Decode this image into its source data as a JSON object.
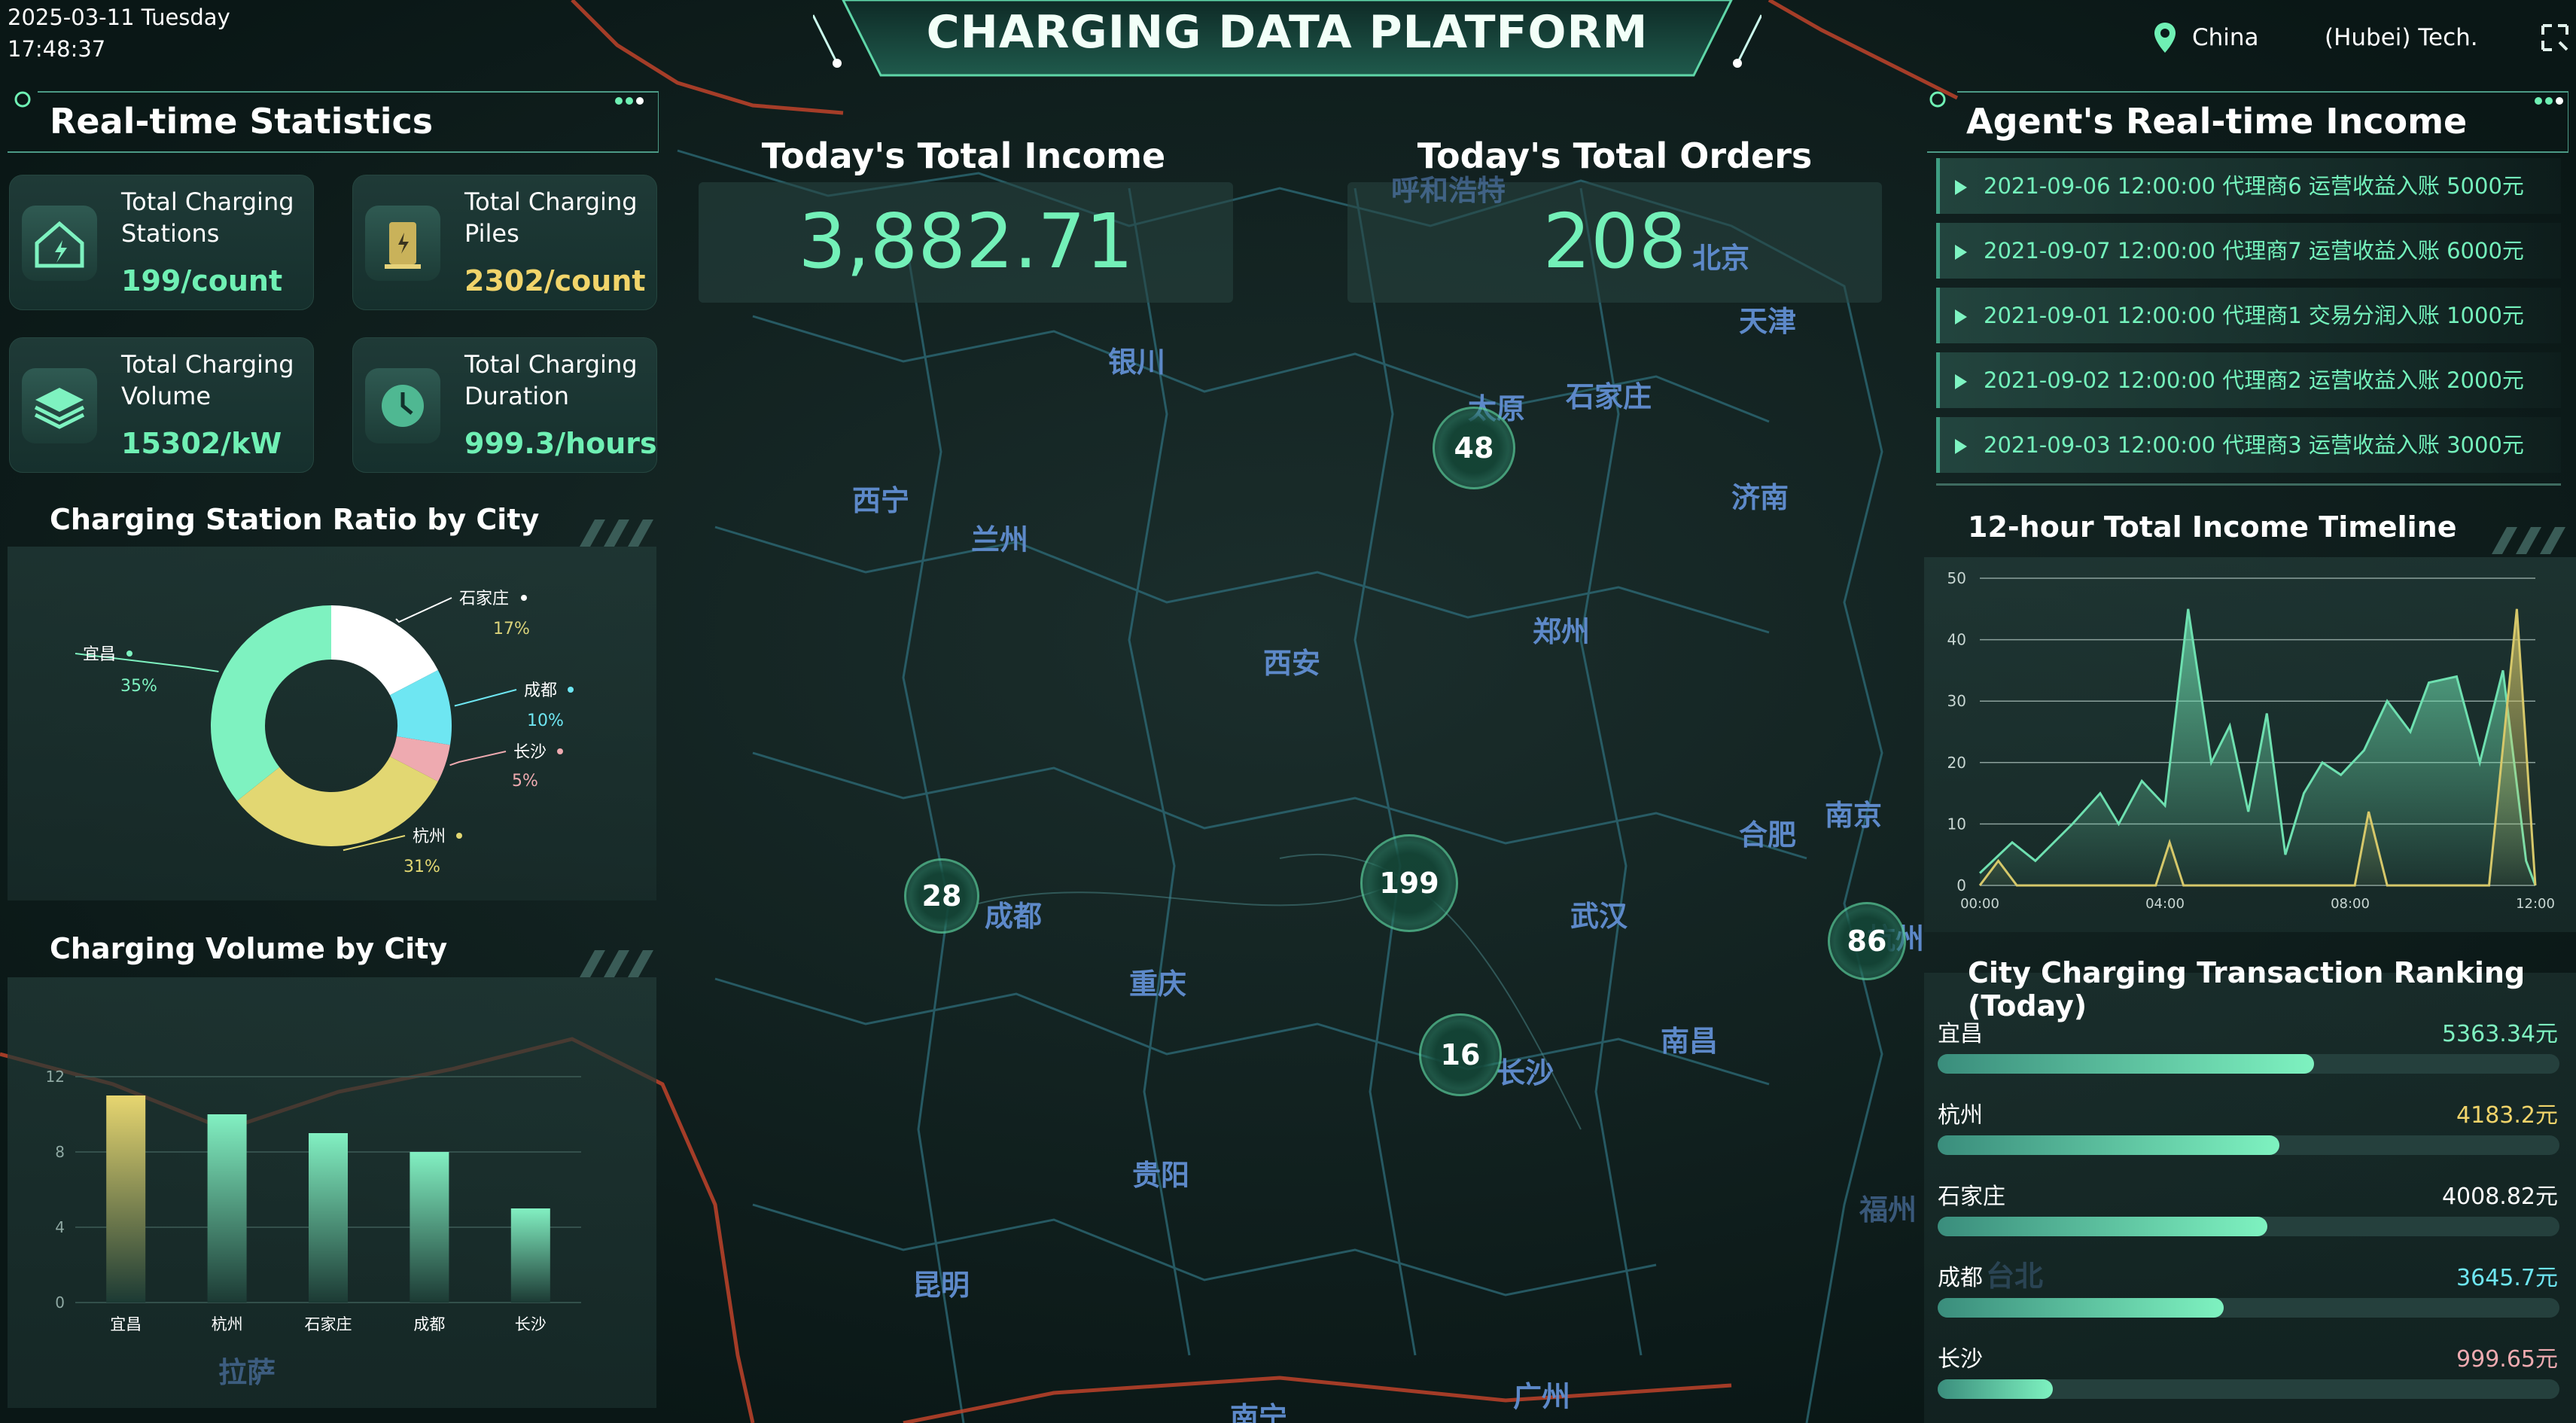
{
  "header": {
    "date": "2025-03-11 Tuesday",
    "time": "17:48:37",
    "title": "CHARGING DATA PLATFORM",
    "location": "China",
    "company": "(Hubei) Tech."
  },
  "realtime": {
    "title": "Real-time Statistics",
    "cards": [
      {
        "label": "Total Charging Stations",
        "value": "199/count",
        "icon": "house-charging-icon"
      },
      {
        "label": "Total Charging Piles",
        "value": "2302/count",
        "icon": "charging-pile-icon"
      },
      {
        "label": "Total Charging Volume",
        "value": "15302/kW",
        "icon": "layers-icon"
      },
      {
        "label": "Total Charging Duration",
        "value": "999.3/hours",
        "icon": "clock-icon"
      }
    ]
  },
  "totals": {
    "income_label": "Today's Total Income",
    "income_value": "3,882.71",
    "orders_label": "Today's Total Orders",
    "orders_value": "208"
  },
  "ratio_chart": {
    "title": "Charging Station Ratio by City",
    "slices": [
      {
        "name": "石家庄",
        "pct": "17%",
        "value": 17,
        "color": "#ffffff"
      },
      {
        "name": "成都",
        "pct": "10%",
        "value": 10,
        "color": "#6ee6f2"
      },
      {
        "name": "长沙",
        "pct": "5%",
        "value": 5,
        "color": "#eeaab0"
      },
      {
        "name": "杭州",
        "pct": "31%",
        "value": 31,
        "color": "#e2d772"
      },
      {
        "name": "宜昌",
        "pct": "35%",
        "value": 35,
        "color": "#7ef2c0"
      }
    ]
  },
  "volume_chart": {
    "title": "Charging Volume by City",
    "categories": [
      "宜昌",
      "杭州",
      "石家庄",
      "成都",
      "长沙"
    ],
    "values": [
      11,
      10,
      9,
      8,
      5
    ],
    "yticks": [
      "12",
      "8",
      "4",
      "0"
    ]
  },
  "agent_income": {
    "title": "Agent's Real-time Income",
    "rows": [
      "2021-09-06 12:00:00  代理商6  运营收益入账 5000元",
      "2021-09-07 12:00:00  代理商7  运营收益入账 6000元",
      "2021-09-01 12:00:00  代理商1  交易分润入账 1000元",
      "2021-09-02 12:00:00  代理商2  运营收益入账 2000元",
      "2021-09-03 12:00:00  代理商3  运营收益入账 3000元"
    ]
  },
  "chart_data": {
    "type": "area",
    "title": "12-hour Total Income Timeline",
    "x_ticks": [
      "00:00",
      "04:00",
      "08:00",
      "12:00"
    ],
    "y_ticks": [
      "50",
      "40",
      "30",
      "20",
      "10",
      "0"
    ],
    "ylim": [
      0,
      50
    ],
    "xlim": [
      0,
      12
    ],
    "series": [
      {
        "color": "#6ee0b0",
        "points": [
          [
            0,
            2
          ],
          [
            0.7,
            7
          ],
          [
            1.2,
            4
          ],
          [
            2,
            10
          ],
          [
            2.6,
            15
          ],
          [
            3,
            10
          ],
          [
            3.5,
            17
          ],
          [
            4,
            13
          ],
          [
            4.5,
            45
          ],
          [
            5,
            20
          ],
          [
            5.4,
            26
          ],
          [
            5.8,
            12
          ],
          [
            6.2,
            28
          ],
          [
            6.6,
            5
          ],
          [
            7,
            15
          ],
          [
            7.4,
            20
          ],
          [
            7.8,
            18
          ],
          [
            8.3,
            22
          ],
          [
            8.8,
            30
          ],
          [
            9.3,
            25
          ],
          [
            9.7,
            33
          ],
          [
            10.3,
            34
          ],
          [
            10.8,
            20
          ],
          [
            11.3,
            35
          ],
          [
            11.8,
            4
          ],
          [
            12,
            0
          ]
        ]
      },
      {
        "color": "#d6c86a",
        "points": [
          [
            0,
            0
          ],
          [
            0.4,
            4
          ],
          [
            0.8,
            0
          ],
          [
            3.8,
            0
          ],
          [
            4.1,
            7
          ],
          [
            4.4,
            0
          ],
          [
            8.1,
            0
          ],
          [
            8.4,
            12
          ],
          [
            8.8,
            0
          ],
          [
            11,
            0
          ],
          [
            11.6,
            45
          ],
          [
            12,
            0
          ]
        ]
      }
    ]
  },
  "ranking": {
    "title": "City Charging Transaction Ranking (Today)",
    "items": [
      {
        "name": "宜昌",
        "value": "5363.34元",
        "pct": 0.605,
        "color": "#7ef2c0"
      },
      {
        "name": "杭州",
        "value": "4183.2元",
        "pct": 0.55,
        "color": "#f1d46a"
      },
      {
        "name": "石家庄",
        "value": "4008.82元",
        "pct": 0.53,
        "color": "#ffffff"
      },
      {
        "name": "成都",
        "value": "3645.7元",
        "pct": 0.46,
        "color": "#6ee6f2"
      },
      {
        "name": "长沙",
        "value": "999.65元",
        "pct": 0.185,
        "color": "#eeaab0"
      }
    ]
  },
  "map": {
    "markers": [
      "48",
      "199",
      "28",
      "16",
      "86"
    ],
    "cities": [
      "呼和浩特",
      "北京",
      "天津",
      "银川",
      "太原",
      "石家庄",
      "西宁",
      "兰州",
      "济南",
      "西安",
      "郑州",
      "合肥",
      "南京",
      "成都",
      "武汉",
      "重庆",
      "长沙",
      "南昌",
      "杭州",
      "贵阳",
      "福州",
      "昆明",
      "台北",
      "南宁",
      "广州",
      "拉萨"
    ]
  }
}
